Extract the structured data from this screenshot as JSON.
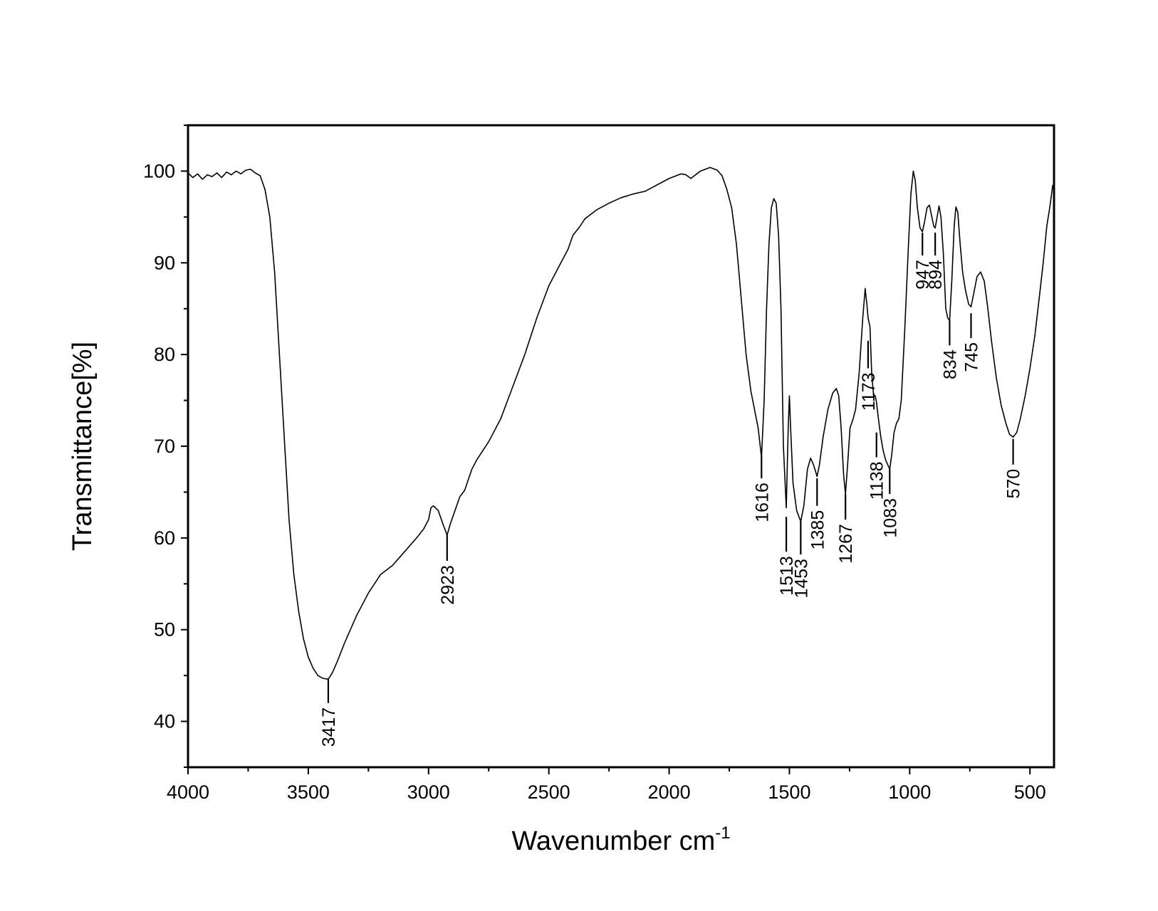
{
  "chart_data": {
    "type": "line",
    "title": "",
    "xlabel": "Wavenumber cm",
    "xlabel_superscript": "-1",
    "ylabel": "Transmittance[%]",
    "xlim": [
      4000,
      400
    ],
    "ylim": [
      35,
      105
    ],
    "x_reversed": true,
    "x_ticks": [
      4000,
      3500,
      3000,
      2500,
      2000,
      1500,
      1000,
      500
    ],
    "y_ticks": [
      40,
      50,
      60,
      70,
      80,
      90,
      100
    ],
    "grid": false,
    "line_color": "#000000",
    "series": [
      {
        "points": [
          [
            4000,
            99.8
          ],
          [
            3980,
            99.3
          ],
          [
            3960,
            99.7
          ],
          [
            3940,
            99.1
          ],
          [
            3920,
            99.6
          ],
          [
            3900,
            99.4
          ],
          [
            3880,
            99.8
          ],
          [
            3860,
            99.3
          ],
          [
            3840,
            99.9
          ],
          [
            3820,
            99.6
          ],
          [
            3800,
            100.0
          ],
          [
            3780,
            99.7
          ],
          [
            3760,
            100.1
          ],
          [
            3740,
            100.2
          ],
          [
            3720,
            99.8
          ],
          [
            3700,
            99.5
          ],
          [
            3680,
            98.0
          ],
          [
            3660,
            95.0
          ],
          [
            3640,
            89.0
          ],
          [
            3620,
            80.0
          ],
          [
            3600,
            71.0
          ],
          [
            3580,
            62.0
          ],
          [
            3560,
            56.0
          ],
          [
            3540,
            52.0
          ],
          [
            3520,
            49.0
          ],
          [
            3500,
            47.0
          ],
          [
            3480,
            45.8
          ],
          [
            3460,
            45.0
          ],
          [
            3440,
            44.7
          ],
          [
            3417,
            44.6
          ],
          [
            3400,
            45.3
          ],
          [
            3380,
            46.5
          ],
          [
            3350,
            48.5
          ],
          [
            3300,
            51.5
          ],
          [
            3250,
            54.0
          ],
          [
            3200,
            56.0
          ],
          [
            3150,
            57.0
          ],
          [
            3100,
            58.5
          ],
          [
            3050,
            60.0
          ],
          [
            3020,
            61.0
          ],
          [
            3000,
            62.0
          ],
          [
            2990,
            63.3
          ],
          [
            2980,
            63.5
          ],
          [
            2960,
            63.0
          ],
          [
            2940,
            61.5
          ],
          [
            2923,
            60.3
          ],
          [
            2910,
            61.5
          ],
          [
            2890,
            63.0
          ],
          [
            2870,
            64.5
          ],
          [
            2850,
            65.2
          ],
          [
            2820,
            67.5
          ],
          [
            2800,
            68.5
          ],
          [
            2750,
            70.5
          ],
          [
            2700,
            73.0
          ],
          [
            2650,
            76.5
          ],
          [
            2600,
            80.0
          ],
          [
            2550,
            84.0
          ],
          [
            2500,
            87.5
          ],
          [
            2450,
            90.0
          ],
          [
            2420,
            91.5
          ],
          [
            2400,
            93.0
          ],
          [
            2370,
            94.0
          ],
          [
            2350,
            94.8
          ],
          [
            2300,
            95.8
          ],
          [
            2250,
            96.5
          ],
          [
            2200,
            97.1
          ],
          [
            2150,
            97.5
          ],
          [
            2100,
            97.8
          ],
          [
            2050,
            98.5
          ],
          [
            2000,
            99.2
          ],
          [
            1950,
            99.7
          ],
          [
            1930,
            99.6
          ],
          [
            1910,
            99.2
          ],
          [
            1890,
            99.6
          ],
          [
            1870,
            100.0
          ],
          [
            1850,
            100.2
          ],
          [
            1830,
            100.4
          ],
          [
            1800,
            100.1
          ],
          [
            1780,
            99.5
          ],
          [
            1760,
            98.0
          ],
          [
            1740,
            96.0
          ],
          [
            1720,
            92.0
          ],
          [
            1700,
            86.0
          ],
          [
            1680,
            80.0
          ],
          [
            1660,
            76.0
          ],
          [
            1645,
            74.0
          ],
          [
            1630,
            72.0
          ],
          [
            1616,
            68.8
          ],
          [
            1605,
            75.0
          ],
          [
            1595,
            85.0
          ],
          [
            1585,
            92.0
          ],
          [
            1575,
            96.0
          ],
          [
            1565,
            97.0
          ],
          [
            1555,
            96.5
          ],
          [
            1545,
            93.0
          ],
          [
            1535,
            85.0
          ],
          [
            1525,
            70.0
          ],
          [
            1513,
            63.3
          ],
          [
            1505,
            72.0
          ],
          [
            1500,
            75.5
          ],
          [
            1495,
            72.0
          ],
          [
            1485,
            66.0
          ],
          [
            1470,
            63.0
          ],
          [
            1453,
            61.8
          ],
          [
            1440,
            63.5
          ],
          [
            1425,
            67.5
          ],
          [
            1412,
            68.7
          ],
          [
            1400,
            68.0
          ],
          [
            1385,
            66.7
          ],
          [
            1375,
            68.0
          ],
          [
            1360,
            71.0
          ],
          [
            1340,
            74.0
          ],
          [
            1320,
            75.8
          ],
          [
            1305,
            76.3
          ],
          [
            1295,
            75.5
          ],
          [
            1285,
            72.0
          ],
          [
            1275,
            67.0
          ],
          [
            1267,
            64.8
          ],
          [
            1258,
            68.0
          ],
          [
            1248,
            72.0
          ],
          [
            1235,
            73.0
          ],
          [
            1225,
            74.0
          ],
          [
            1210,
            78.0
          ],
          [
            1195,
            84.0
          ],
          [
            1185,
            87.2
          ],
          [
            1178,
            85.5
          ],
          [
            1173,
            84.0
          ],
          [
            1165,
            83.0
          ],
          [
            1158,
            78.0
          ],
          [
            1150,
            75.5
          ],
          [
            1143,
            75.5
          ],
          [
            1138,
            74.8
          ],
          [
            1130,
            73.0
          ],
          [
            1120,
            71.0
          ],
          [
            1110,
            69.5
          ],
          [
            1100,
            68.5
          ],
          [
            1083,
            67.5
          ],
          [
            1075,
            69.0
          ],
          [
            1065,
            71.5
          ],
          [
            1055,
            72.5
          ],
          [
            1045,
            73.0
          ],
          [
            1035,
            75.0
          ],
          [
            1020,
            83.0
          ],
          [
            1005,
            92.0
          ],
          [
            995,
            97.5
          ],
          [
            985,
            100.0
          ],
          [
            977,
            99.0
          ],
          [
            968,
            96.0
          ],
          [
            957,
            93.8
          ],
          [
            947,
            93.4
          ],
          [
            938,
            94.5
          ],
          [
            928,
            96.0
          ],
          [
            918,
            96.3
          ],
          [
            908,
            95.0
          ],
          [
            900,
            94.0
          ],
          [
            894,
            93.8
          ],
          [
            886,
            95.0
          ],
          [
            878,
            96.2
          ],
          [
            870,
            95.0
          ],
          [
            860,
            91.0
          ],
          [
            850,
            85.0
          ],
          [
            842,
            84.0
          ],
          [
            834,
            83.7
          ],
          [
            825,
            88.0
          ],
          [
            815,
            94.0
          ],
          [
            808,
            96.1
          ],
          [
            800,
            95.5
          ],
          [
            790,
            92.0
          ],
          [
            780,
            89.0
          ],
          [
            768,
            87.0
          ],
          [
            755,
            85.5
          ],
          [
            745,
            85.2
          ],
          [
            735,
            86.5
          ],
          [
            720,
            88.5
          ],
          [
            705,
            89.0
          ],
          [
            690,
            88.0
          ],
          [
            675,
            85.0
          ],
          [
            660,
            81.5
          ],
          [
            640,
            77.5
          ],
          [
            620,
            74.5
          ],
          [
            600,
            72.5
          ],
          [
            585,
            71.3
          ],
          [
            570,
            71.0
          ],
          [
            555,
            71.5
          ],
          [
            540,
            73.0
          ],
          [
            520,
            75.5
          ],
          [
            500,
            78.5
          ],
          [
            480,
            82.0
          ],
          [
            460,
            86.5
          ],
          [
            445,
            90.0
          ],
          [
            430,
            94.0
          ],
          [
            418,
            96.0
          ],
          [
            405,
            98.5
          ]
        ]
      }
    ],
    "peaks": [
      {
        "label": "3417",
        "x": 3417,
        "y_tip": 44.6,
        "y_bottom": 42.0,
        "dir": "down"
      },
      {
        "label": "2923",
        "x": 2923,
        "y_tip": 60.3,
        "y_bottom": 57.5,
        "dir": "down"
      },
      {
        "label": "1616",
        "x": 1616,
        "y_tip": 69.0,
        "y_bottom": 66.5,
        "dir": "down"
      },
      {
        "label": "1513",
        "x": 1513,
        "y_tip": 62.3,
        "y_bottom": 58.5,
        "dir": "down"
      },
      {
        "label": "1453",
        "x": 1453,
        "y_tip": 61.8,
        "y_bottom": 58.2,
        "dir": "down"
      },
      {
        "label": "1385",
        "x": 1385,
        "y_tip": 66.5,
        "y_bottom": 63.5,
        "dir": "down"
      },
      {
        "label": "1267",
        "x": 1267,
        "y_tip": 64.8,
        "y_bottom": 62.0,
        "dir": "down"
      },
      {
        "label": "1173",
        "x": 1173,
        "y_tip": 81.5,
        "y_bottom": 78.5,
        "dir": "down"
      },
      {
        "label": "1138",
        "x": 1138,
        "y_tip": 71.5,
        "y_bottom": 68.8,
        "dir": "down"
      },
      {
        "label": "1083",
        "x": 1083,
        "y_tip": 67.5,
        "y_bottom": 64.8,
        "dir": "down"
      },
      {
        "label": "947",
        "x": 947,
        "y_tip": 93.3,
        "y_bottom": 90.8,
        "dir": "down"
      },
      {
        "label": "894",
        "x": 894,
        "y_tip": 93.3,
        "y_bottom": 90.8,
        "dir": "down"
      },
      {
        "label": "834",
        "x": 834,
        "y_tip": 83.7,
        "y_bottom": 81.0,
        "dir": "down"
      },
      {
        "label": "745",
        "x": 745,
        "y_tip": 84.5,
        "y_bottom": 81.8,
        "dir": "down"
      },
      {
        "label": "570",
        "x": 570,
        "y_tip": 70.8,
        "y_bottom": 68.0,
        "dir": "down"
      }
    ]
  }
}
